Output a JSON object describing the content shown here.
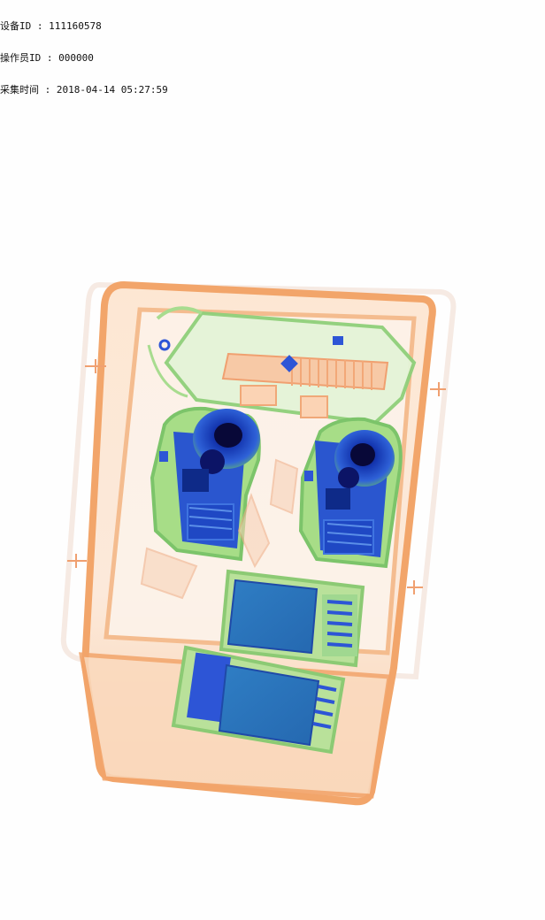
{
  "overlay": {
    "device_id_label": "设备ID",
    "device_id_value": "111160578",
    "operator_id_label": "操作员ID",
    "operator_id_value": "000000",
    "capture_time_label": "采集时间",
    "capture_time_value": "2018-04-14 05:27:59",
    "separator": " : "
  },
  "colors": {
    "background": "#fefefe",
    "tray_orange": "#f0a060",
    "tray_fill": "#fbe3cf",
    "organic_green": "#9fd68a",
    "metal_blue": "#1e4fd0",
    "dense_dark": "#0a0a55",
    "screen_teal": "#2a7fb8"
  }
}
